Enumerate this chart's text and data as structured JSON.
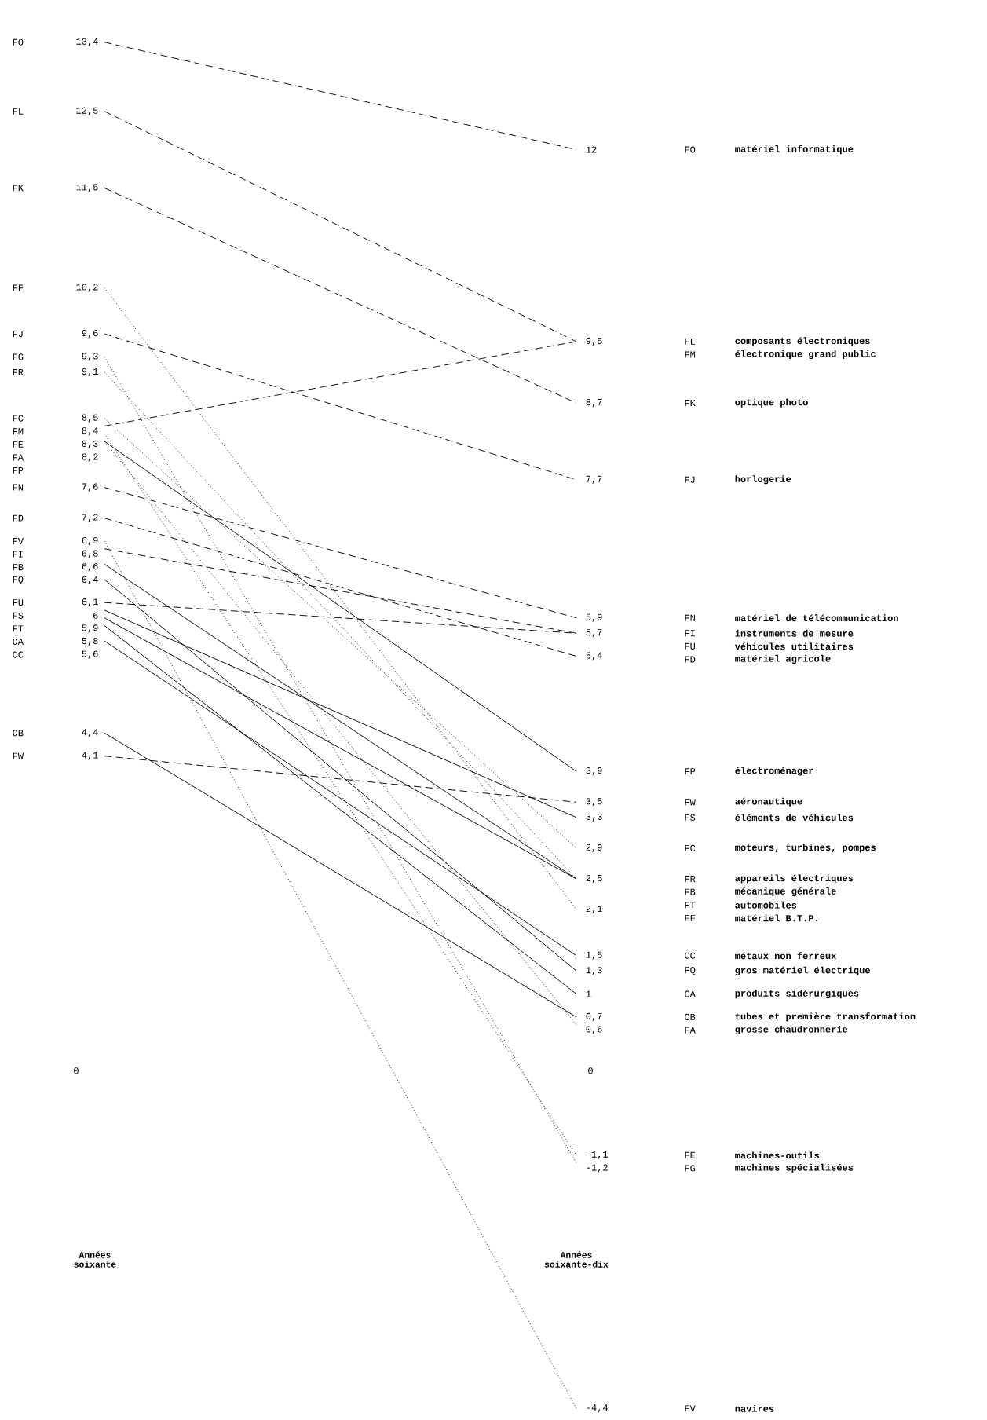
{
  "chart_data": {
    "type": "line",
    "categories": [
      "Années soixante",
      "Années soixante-dix"
    ],
    "marker": "none",
    "series": [
      {
        "name": "FO",
        "color": "#000000",
        "line_style": "dashed",
        "values": [
          13.4,
          12
        ],
        "value_labels": [
          "13,4",
          "12"
        ]
      },
      {
        "name": "FL",
        "color": "#000000",
        "line_style": "dashed",
        "values": [
          12.5,
          9.5
        ],
        "value_labels": [
          "12,5",
          "9,5"
        ]
      },
      {
        "name": "FK",
        "color": "#000000",
        "line_style": "dashed",
        "values": [
          11.5,
          8.7
        ],
        "value_labels": [
          "11,5",
          "8,7"
        ]
      },
      {
        "name": "FF",
        "color": "#000000",
        "line_style": "dotted",
        "values": [
          10.2,
          2.1
        ],
        "value_labels": [
          "10,2",
          "2,1"
        ]
      },
      {
        "name": "FJ",
        "color": "#000000",
        "line_style": "dashed",
        "values": [
          9.6,
          7.7
        ],
        "value_labels": [
          "9,6",
          "7,7"
        ]
      },
      {
        "name": "FG",
        "color": "#000000",
        "line_style": "dotted",
        "values": [
          9.3,
          -1.2
        ],
        "value_labels": [
          "9,3",
          "-1,2"
        ]
      },
      {
        "name": "FR",
        "color": "#000000",
        "line_style": "dotted",
        "values": [
          9.1,
          2.5
        ],
        "value_labels": [
          "9,1",
          "2,5"
        ]
      },
      {
        "name": "FC",
        "color": "#000000",
        "line_style": "dotted",
        "values": [
          8.5,
          2.9
        ],
        "value_labels": [
          "8,5",
          "2,9"
        ]
      },
      {
        "name": "FM",
        "color": "#000000",
        "line_style": "dashed",
        "values": [
          8.4,
          9.5
        ],
        "value_labels": [
          "8,4",
          null
        ]
      },
      {
        "name": "FE",
        "color": "#000000",
        "line_style": "dotted",
        "values": [
          8.3,
          -1.1
        ],
        "value_labels": [
          "8,3",
          "-1,1"
        ]
      },
      {
        "name": "FA",
        "color": "#000000",
        "line_style": "dotted",
        "values": [
          8.2,
          0.6
        ],
        "value_labels": [
          "8,2",
          "0,6"
        ]
      },
      {
        "name": "FP",
        "color": "#000000",
        "line_style": "solid",
        "values": [
          8.2,
          3.9
        ],
        "value_labels": [
          null,
          "3,9"
        ]
      },
      {
        "name": "FN",
        "color": "#000000",
        "line_style": "dashed",
        "values": [
          7.6,
          5.9
        ],
        "value_labels": [
          "7,6",
          "5,9"
        ]
      },
      {
        "name": "FD",
        "color": "#000000",
        "line_style": "dashed",
        "values": [
          7.2,
          5.4
        ],
        "value_labels": [
          "7,2",
          "5,4"
        ]
      },
      {
        "name": "FV",
        "color": "#000000",
        "line_style": "dotted",
        "values": [
          6.9,
          -4.4
        ],
        "value_labels": [
          "6,9",
          "-4,4"
        ]
      },
      {
        "name": "FI",
        "color": "#000000",
        "line_style": "dashed",
        "values": [
          6.8,
          5.7
        ],
        "value_labels": [
          "6,8",
          "5,7"
        ]
      },
      {
        "name": "FB",
        "color": "#000000",
        "line_style": "solid",
        "values": [
          6.6,
          2.5
        ],
        "value_labels": [
          "6,6",
          null
        ]
      },
      {
        "name": "FQ",
        "color": "#000000",
        "line_style": "solid",
        "values": [
          6.4,
          1.3
        ],
        "value_labels": [
          "6,4",
          "1,3"
        ]
      },
      {
        "name": "FU",
        "color": "#000000",
        "line_style": "dashed",
        "values": [
          6.1,
          5.7
        ],
        "value_labels": [
          "6,1",
          null
        ]
      },
      {
        "name": "FS",
        "color": "#000000",
        "line_style": "solid",
        "values": [
          6,
          3.3
        ],
        "value_labels": [
          "6",
          "3,3"
        ]
      },
      {
        "name": "FT",
        "color": "#000000",
        "line_style": "solid",
        "values": [
          5.9,
          2.5
        ],
        "value_labels": [
          "5,9",
          null
        ]
      },
      {
        "name": "CA",
        "color": "#000000",
        "line_style": "solid",
        "values": [
          5.8,
          1
        ],
        "value_labels": [
          "5,8",
          "1"
        ]
      },
      {
        "name": "CC",
        "color": "#000000",
        "line_style": "solid",
        "values": [
          5.6,
          1.5
        ],
        "value_labels": [
          "5,6",
          "1,5"
        ]
      },
      {
        "name": "CB",
        "color": "#000000",
        "line_style": "solid",
        "values": [
          4.4,
          0.7
        ],
        "value_labels": [
          "4,4",
          "0,7"
        ]
      },
      {
        "name": "FW",
        "color": "#000000",
        "line_style": "dashed",
        "values": [
          4.1,
          3.5
        ],
        "value_labels": [
          "4,1",
          "3,5"
        ]
      }
    ],
    "annotations": [
      "matériel informatique",
      "composants électroniques",
      "optique photo",
      "matériel B.T.P.",
      "horlogerie",
      "machines spécialisées",
      "appareils électriques",
      "moteurs, turbines, pompes",
      "électronique grand public",
      "machines-outils",
      "grosse chaudronnerie",
      "électroménager",
      "matériel de télécommunication",
      "matériel agricole",
      "navires",
      "instruments de mesure",
      "mécanique générale",
      "gros matériel électrique",
      "véhicules utilitaires",
      "éléments de véhicules",
      "automobiles",
      "produits sidérurgiques",
      "métaux non ferreux",
      "tubes et première transformation",
      "aéronautique",
      "0",
      "0"
    ]
  }
}
